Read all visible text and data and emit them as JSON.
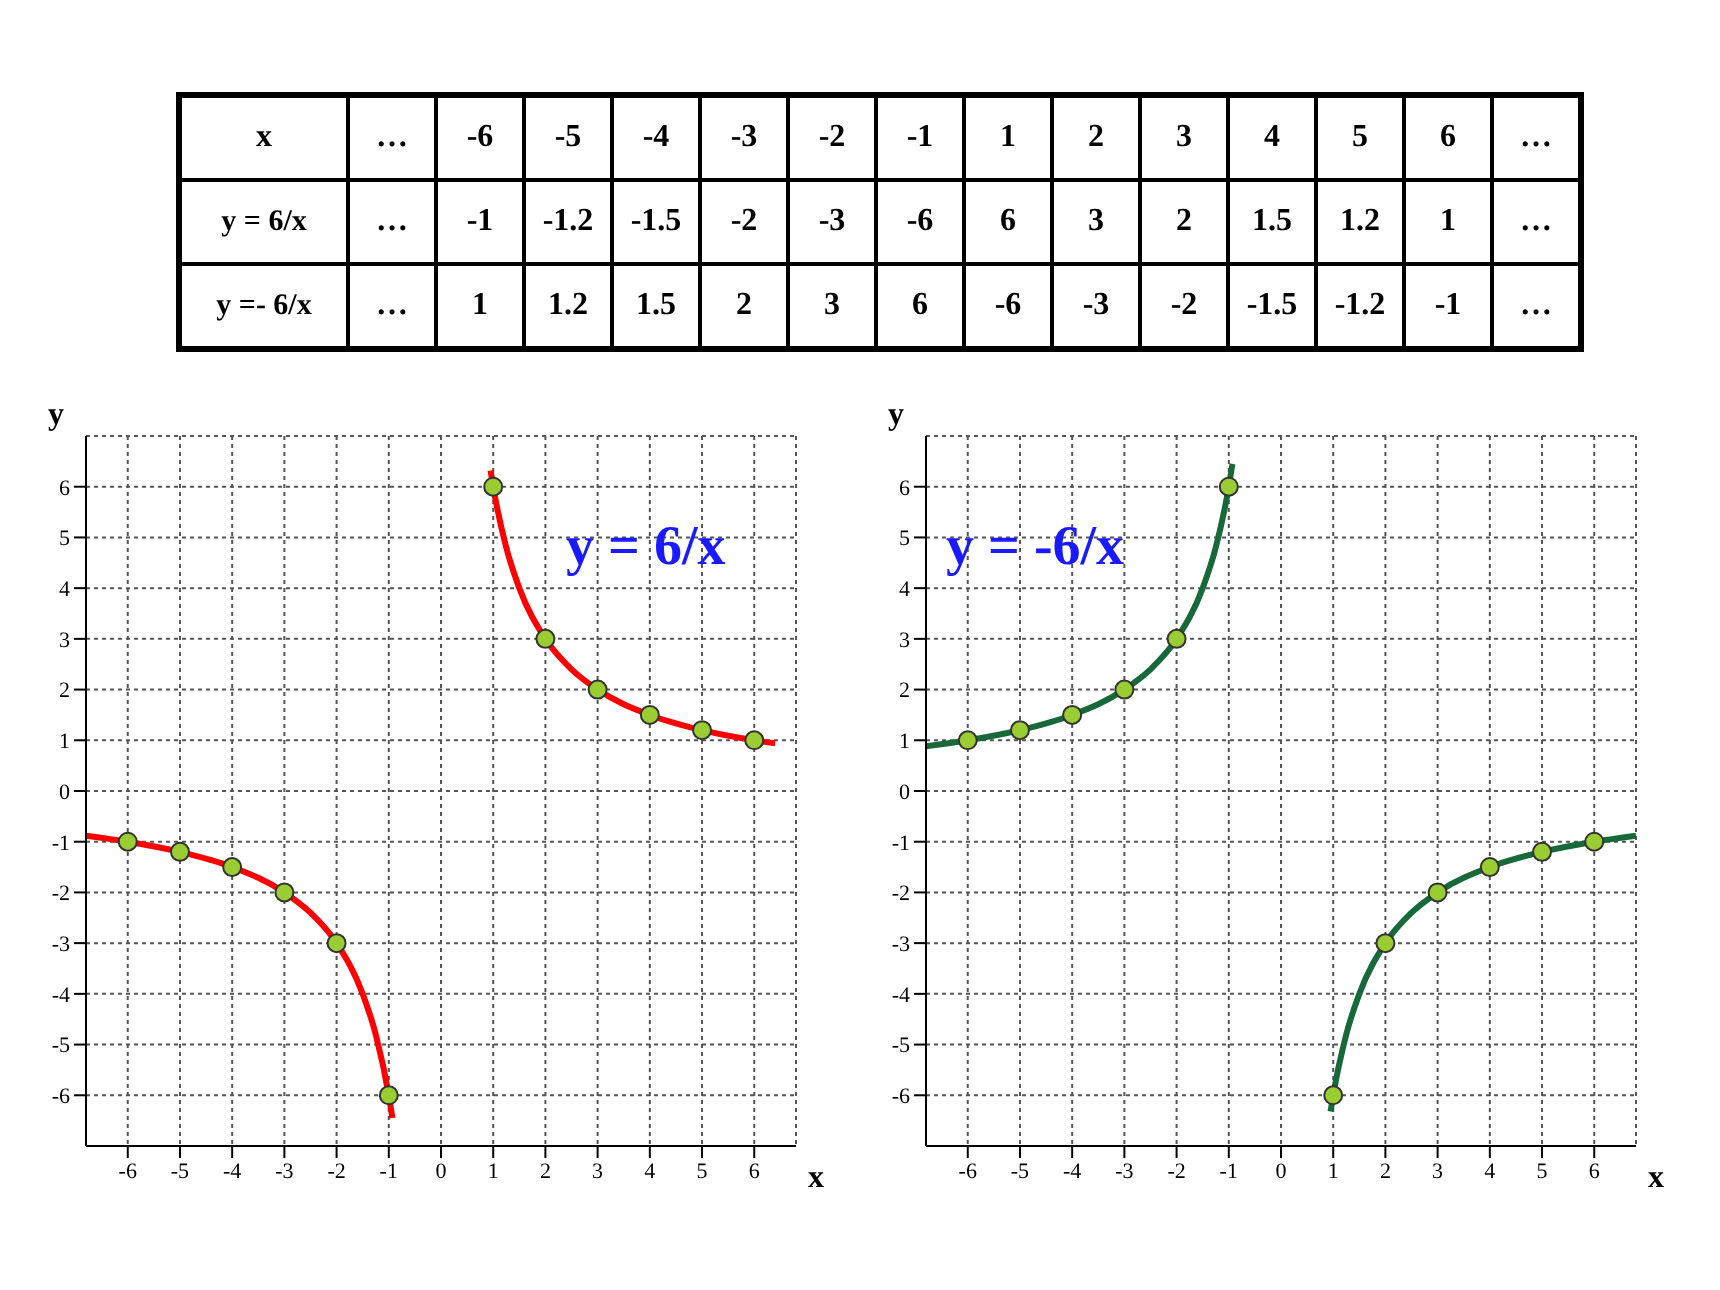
{
  "chart_data": [
    {
      "type": "heatmap",
      "xlabel": "x",
      "categories": [
        "…",
        "-6",
        "-5",
        "-4",
        "-3",
        "-2",
        "-1",
        "1",
        "2",
        "3",
        "4",
        "5",
        "6",
        "…"
      ],
      "y_categories": [
        "y = 6/x",
        "y =- 6/x"
      ],
      "cells": [
        [
          null,
          null,
          null,
          null,
          null,
          null,
          null,
          null,
          null,
          null,
          null,
          null,
          null,
          null
        ],
        [
          null,
          null,
          null,
          null,
          null,
          null,
          null,
          null,
          null,
          null,
          null,
          null,
          null,
          null
        ]
      ],
      "cell_labels": [
        [
          "…",
          "-1",
          "-1.2",
          "-1.5",
          "-2",
          "-3",
          "-6",
          "6",
          "3",
          "2",
          "1.5",
          "1.2",
          "1",
          "…"
        ],
        [
          "…",
          "1",
          "1.2",
          "1.5",
          "2",
          "3",
          "6",
          "-6",
          "-3",
          "-2",
          "-1.5",
          "-1.2",
          "-1",
          "…"
        ]
      ]
    },
    {
      "type": "line",
      "xlabel": "x",
      "ylabel": "y",
      "annotations": [
        "y = 6/x"
      ],
      "xlim": [
        -6.8,
        6.8
      ],
      "ylim": [
        -7,
        7
      ],
      "xticks": [
        -6,
        -5,
        -4,
        -3,
        -2,
        -1,
        0,
        1,
        2,
        3,
        4,
        5,
        6
      ],
      "yticks": [
        -6,
        -5,
        -4,
        -3,
        -2,
        -1,
        0,
        1,
        2,
        3,
        4,
        5,
        6
      ],
      "grid": true,
      "series": [
        {
          "color": "#ff0000",
          "x": [
            -6.8,
            -6,
            -5,
            -4,
            -3,
            -2.5,
            -2,
            -1.5,
            -1.25,
            -1,
            -0.93
          ],
          "values": [
            -0.88,
            -1,
            -1.2,
            -1.5,
            -2,
            -2.4,
            -3,
            -4,
            -4.8,
            -6,
            -6.45
          ]
        },
        {
          "color": "#ff0000",
          "x": [
            0.95,
            1,
            1.25,
            1.5,
            2,
            2.5,
            3,
            4,
            5,
            6,
            6.4
          ],
          "values": [
            6.32,
            6,
            4.8,
            4,
            3,
            2.4,
            2,
            1.5,
            1.2,
            1,
            0.94
          ]
        },
        {
          "type": "scatter",
          "color": "#9acd32",
          "x": [
            -6,
            -5,
            -4,
            -3,
            -2,
            -1,
            1,
            2,
            3,
            4,
            5,
            6
          ],
          "values": [
            -1,
            -1.2,
            -1.5,
            -2,
            -3,
            -6,
            6,
            3,
            2,
            1.5,
            1.2,
            1
          ]
        }
      ]
    },
    {
      "type": "line",
      "xlabel": "x",
      "ylabel": "y",
      "annotations": [
        "y = -6/x"
      ],
      "xlim": [
        -6.8,
        6.8
      ],
      "ylim": [
        -7,
        7
      ],
      "xticks": [
        -6,
        -5,
        -4,
        -3,
        -2,
        -1,
        0,
        1,
        2,
        3,
        4,
        5,
        6
      ],
      "yticks": [
        -6,
        -5,
        -4,
        -3,
        -2,
        -1,
        0,
        1,
        2,
        3,
        4,
        5,
        6
      ],
      "grid": true,
      "series": [
        {
          "color": "#17693a",
          "x": [
            -6.8,
            -6,
            -5,
            -4,
            -3,
            -2.5,
            -2,
            -1.5,
            -1.25,
            -1,
            -0.93
          ],
          "values": [
            0.88,
            1,
            1.2,
            1.5,
            2,
            2.4,
            3,
            4,
            4.8,
            6,
            6.45
          ]
        },
        {
          "color": "#17693a",
          "x": [
            0.95,
            1,
            1.25,
            1.5,
            2,
            2.5,
            3,
            4,
            5,
            6,
            6.8
          ],
          "values": [
            -6.32,
            -6,
            -4.8,
            -4,
            -3,
            -2.4,
            -2,
            -1.5,
            -1.2,
            -1,
            -0.88
          ]
        },
        {
          "type": "scatter",
          "color": "#9acd32",
          "x": [
            -6,
            -5,
            -4,
            -3,
            -2,
            -1,
            1,
            2,
            3,
            4,
            5,
            6
          ],
          "values": [
            1,
            1.2,
            1.5,
            2,
            3,
            6,
            -6,
            -3,
            -2,
            -1.5,
            -1.2,
            -1
          ]
        }
      ]
    }
  ]
}
